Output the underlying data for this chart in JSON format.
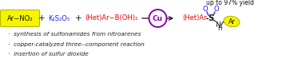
{
  "bg_color": "#ffffff",
  "reactant1_text": "Ar−NO₂",
  "reactant1_bg": "#ffff99",
  "reactant2_text": "K₂S₂O₅",
  "reactant3_text": "(Het)Ar−B(OH)₂",
  "catalyst_text": "Cu",
  "product_het_ar": "(Het)Ar",
  "product_s": "S",
  "product_o1": "O",
  "product_o2": "O",
  "product_n": "N",
  "product_h": "H",
  "product_ar": "Ar",
  "yield_text": "up to 97% yield",
  "bullet1": "·  synthesis of sulfonamides from nitroarenes",
  "bullet2": "·  copper-catalyzed three-­component reaction",
  "bullet3": "·  insertion of sulfur dioxide",
  "red_color": "#ee0000",
  "blue_color": "#1a1aff",
  "purple_color": "#8800aa",
  "black_color": "#111111",
  "dark_gray": "#222222",
  "yellow_fill": "#f5f500",
  "yellow_edge": "#b8b800"
}
